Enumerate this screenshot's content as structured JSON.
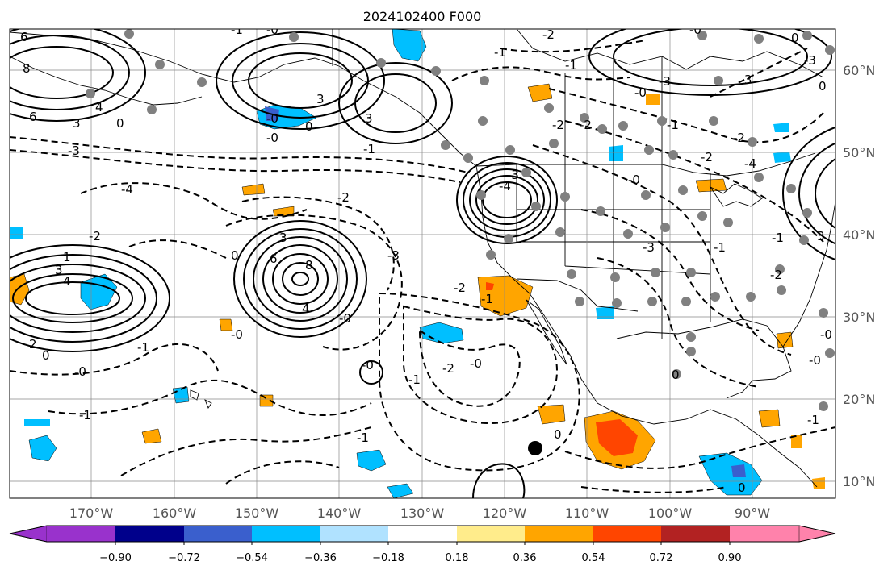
{
  "title": "2024102400 F000",
  "map": {
    "lon_range": [
      -180,
      -80
    ],
    "lat_range": [
      8,
      65
    ],
    "lon_ticks": [
      "170°W",
      "160°W",
      "150°W",
      "140°W",
      "130°W",
      "120°W",
      "110°W",
      "100°W",
      "90°W"
    ],
    "lat_ticks": [
      "60°N",
      "50°N",
      "40°N",
      "30°N",
      "20°N",
      "10°N"
    ],
    "grid": true,
    "contour_labels": [
      {
        "text": "6"
      },
      {
        "text": "8"
      },
      {
        "text": "4"
      },
      {
        "text": "6"
      },
      {
        "text": "3"
      },
      {
        "text": "0"
      },
      {
        "text": "-3"
      },
      {
        "text": "-4"
      },
      {
        "text": "-2"
      },
      {
        "text": "1"
      },
      {
        "text": "3"
      },
      {
        "text": "4"
      },
      {
        "text": "2"
      },
      {
        "text": "0"
      },
      {
        "text": "-1"
      },
      {
        "text": "-0"
      },
      {
        "text": "-1"
      },
      {
        "text": "3"
      },
      {
        "text": "-0"
      },
      {
        "text": "0"
      },
      {
        "text": "-0"
      },
      {
        "text": "3"
      },
      {
        "text": "-2"
      },
      {
        "text": "-1"
      },
      {
        "text": "3"
      },
      {
        "text": "6"
      },
      {
        "text": "8"
      },
      {
        "text": "4"
      },
      {
        "text": "0"
      },
      {
        "text": "-3"
      },
      {
        "text": "-0"
      },
      {
        "text": "-1"
      },
      {
        "text": "-0"
      },
      {
        "text": "-0"
      },
      {
        "text": "-1"
      },
      {
        "text": "0"
      },
      {
        "text": "-3"
      },
      {
        "text": "-4"
      },
      {
        "text": "-2"
      },
      {
        "text": "-1"
      },
      {
        "text": "-2"
      },
      {
        "text": "-3"
      },
      {
        "text": "-1"
      },
      {
        "text": "-0"
      },
      {
        "text": "-2"
      },
      {
        "text": "-2"
      },
      {
        "text": "-1"
      },
      {
        "text": "-0"
      },
      {
        "text": "-3"
      },
      {
        "text": "3"
      },
      {
        "text": "-2"
      },
      {
        "text": "-2"
      },
      {
        "text": "-1"
      },
      {
        "text": "-2"
      },
      {
        "text": "0"
      },
      {
        "text": "-0"
      },
      {
        "text": "0"
      },
      {
        "text": "-0"
      },
      {
        "text": "-1"
      },
      {
        "text": "0"
      },
      {
        "text": "-2"
      },
      {
        "text": "-1"
      },
      {
        "text": "-4"
      },
      {
        "text": "-1"
      },
      {
        "text": "3"
      },
      {
        "text": "-3"
      },
      {
        "text": "0"
      },
      {
        "text": "-0"
      },
      {
        "text": "-1"
      },
      {
        "text": "-0"
      },
      {
        "text": "-0"
      }
    ]
  },
  "colorbar": {
    "tick_labels": [
      "−0.90",
      "−0.72",
      "−0.54",
      "−0.36",
      "−0.18",
      "0.18",
      "0.36",
      "0.54",
      "0.72",
      "0.90"
    ],
    "colors": [
      "#9932cc",
      "#00008b",
      "#3a5fcd",
      "#00bfff",
      "#b0e2ff",
      "#ffffff",
      "#ffec8b",
      "#ffa500",
      "#ff4500",
      "#b22222",
      "#ff82ab"
    ]
  }
}
